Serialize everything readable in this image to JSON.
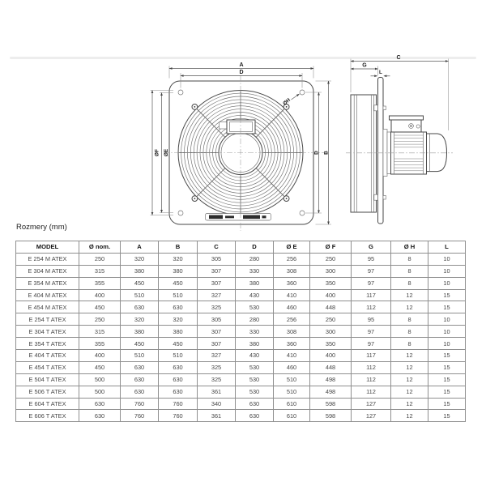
{
  "diagram": {
    "front_view": {
      "dim_a": "A",
      "dim_d_top": "D",
      "dim_of": "ØF",
      "dim_oe": "ØE",
      "dim_d_right": "D",
      "dim_b": "B",
      "dim_oh": "ØH"
    },
    "side_view": {
      "dim_c": "C",
      "dim_g": "G",
      "dim_l": "L"
    }
  },
  "table": {
    "title": "Rozmery (mm)",
    "columns": [
      "MODEL",
      "Ø nom.",
      "A",
      "B",
      "C",
      "D",
      "Ø E",
      "Ø F",
      "G",
      "Ø H",
      "L"
    ],
    "rows": [
      [
        "E 254 M ATEX",
        "250",
        "320",
        "320",
        "305",
        "280",
        "256",
        "250",
        "95",
        "8",
        "10"
      ],
      [
        "E 304 M ATEX",
        "315",
        "380",
        "380",
        "307",
        "330",
        "308",
        "300",
        "97",
        "8",
        "10"
      ],
      [
        "E 354 M ATEX",
        "355",
        "450",
        "450",
        "307",
        "380",
        "360",
        "350",
        "97",
        "8",
        "10"
      ],
      [
        "E 404 M ATEX",
        "400",
        "510",
        "510",
        "327",
        "430",
        "410",
        "400",
        "117",
        "12",
        "15"
      ],
      [
        "E 454 M ATEX",
        "450",
        "630",
        "630",
        "325",
        "530",
        "460",
        "448",
        "112",
        "12",
        "15"
      ],
      [
        "E 254 T ATEX",
        "250",
        "320",
        "320",
        "305",
        "280",
        "256",
        "250",
        "95",
        "8",
        "10"
      ],
      [
        "E 304 T ATEX",
        "315",
        "380",
        "380",
        "307",
        "330",
        "308",
        "300",
        "97",
        "8",
        "10"
      ],
      [
        "E 354 T ATEX",
        "355",
        "450",
        "450",
        "307",
        "380",
        "360",
        "350",
        "97",
        "8",
        "10"
      ],
      [
        "E 404 T ATEX",
        "400",
        "510",
        "510",
        "327",
        "430",
        "410",
        "400",
        "117",
        "12",
        "15"
      ],
      [
        "E 454 T ATEX",
        "450",
        "630",
        "630",
        "325",
        "530",
        "460",
        "448",
        "112",
        "12",
        "15"
      ],
      [
        "E 504 T ATEX",
        "500",
        "630",
        "630",
        "325",
        "530",
        "510",
        "498",
        "112",
        "12",
        "15"
      ],
      [
        "E 506 T ATEX",
        "500",
        "630",
        "630",
        "361",
        "530",
        "510",
        "498",
        "112",
        "12",
        "15"
      ],
      [
        "E 604 T ATEX",
        "630",
        "760",
        "760",
        "340",
        "630",
        "610",
        "598",
        "127",
        "12",
        "15"
      ],
      [
        "E 606 T ATEX",
        "630",
        "760",
        "760",
        "361",
        "630",
        "610",
        "598",
        "127",
        "12",
        "15"
      ]
    ]
  }
}
